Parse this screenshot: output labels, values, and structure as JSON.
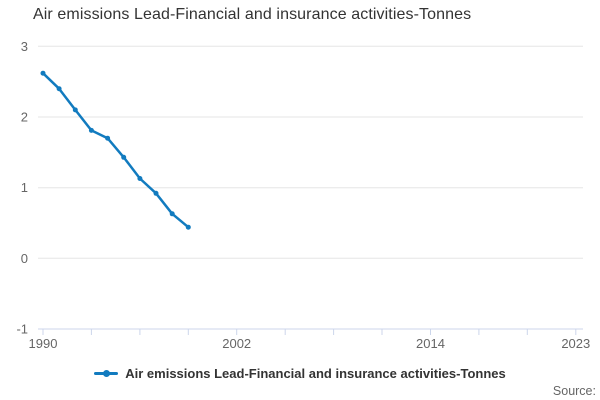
{
  "title": "Air emissions Lead-Financial and insurance activities-Tonnes",
  "legend": {
    "label": "Air emissions Lead-Financial and insurance activities-Tonnes"
  },
  "source": {
    "label": "Source:"
  },
  "colors": {
    "line": "#127bbf",
    "grid": "#e6e6e6",
    "axis": "#ccd6eb",
    "tick_label": "#666666",
    "title_text": "#333333",
    "legend_text": "#333333",
    "source_text": "#666666",
    "background": "#ffffff"
  },
  "chart_data": {
    "type": "line",
    "title": "Air emissions Lead-Financial and insurance activities-Tonnes",
    "x": [
      1990,
      1991,
      1992,
      1993,
      1994,
      1995,
      1996,
      1997,
      1998,
      1999
    ],
    "series": [
      {
        "name": "Air emissions Lead-Financial and insurance activities-Tonnes",
        "values": [
          2.62,
          2.4,
          2.1,
          1.81,
          1.7,
          1.43,
          1.13,
          0.92,
          0.63,
          0.44
        ]
      }
    ],
    "xlabel": "",
    "ylabel": "",
    "xlim": [
      1990,
      2023
    ],
    "ylim": [
      -1,
      3
    ],
    "y_ticks": [
      3,
      2,
      1,
      0,
      -1
    ],
    "x_minor_ticks": [
      1990,
      1993,
      1996,
      1999,
      2002,
      2005,
      2008,
      2011,
      2014,
      2017,
      2020,
      2023
    ],
    "x_labeled_ticks": [
      {
        "year": 1990,
        "label": "1990"
      },
      {
        "year": 2002,
        "label": "2002"
      },
      {
        "year": 2014,
        "label": "2014"
      },
      {
        "year": 2023,
        "label": "2023"
      }
    ],
    "grid": "horizontal",
    "legend_position": "bottom",
    "marker": "circle"
  }
}
